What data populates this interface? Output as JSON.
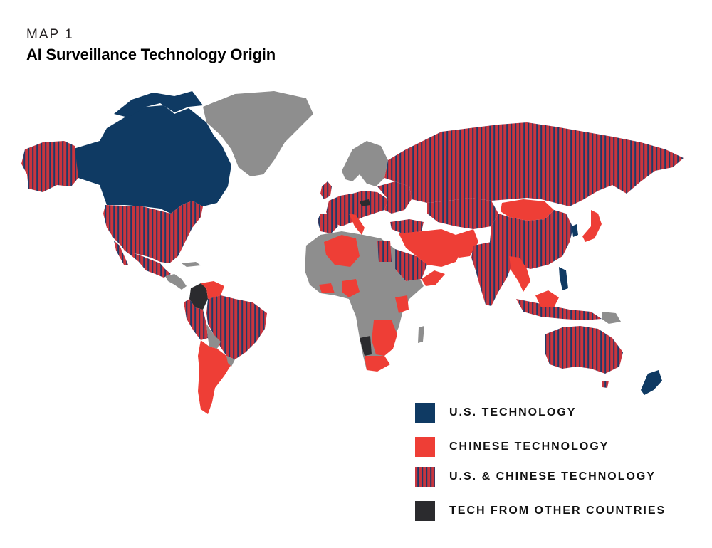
{
  "header": {
    "kicker": "MAP 1",
    "title": "AI Surveillance Technology Origin"
  },
  "colors": {
    "us": "#0f3a63",
    "china": "#ee3e36",
    "us_china_stripe_a": "#c9353e",
    "us_china_stripe_b": "#1f3a68",
    "other": "#2b2b2e",
    "no_data": "#8e8e8e",
    "background": "#ffffff"
  },
  "legend": [
    {
      "key": "us",
      "label": "U.S. TECHNOLOGY"
    },
    {
      "key": "china",
      "label": "CHINESE TECHNOLOGY"
    },
    {
      "key": "us_china",
      "label": "U.S. & CHINESE TECHNOLOGY"
    },
    {
      "key": "other",
      "label": "TECH FROM OTHER COUNTRIES"
    }
  ]
}
